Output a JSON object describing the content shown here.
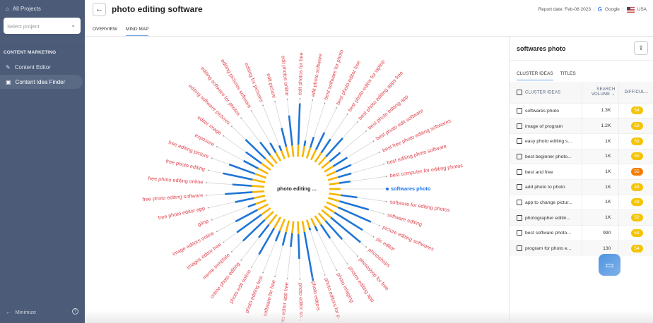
{
  "sidebar": {
    "all_projects": "All Projects",
    "select_placeholder": "Select project",
    "section": "CONTENT MARKETING",
    "items": [
      {
        "label": "Content Editor"
      },
      {
        "label": "Content Idea Finder"
      }
    ],
    "minimize": "Minimize"
  },
  "header": {
    "title": "photo editing software",
    "report_date": "Report date: Feb-08 2023",
    "engine": "Google",
    "country": "USA",
    "tabs": [
      "OVERVIEW",
      "MIND MAP"
    ]
  },
  "mindmap": {
    "center": "photo editing ...",
    "selected": "softwares photo",
    "colors": {
      "label": "#e0454f",
      "selected": "#1a73e8",
      "bar_blue": "#1f75d6",
      "bar_yellow": "#f7b500"
    },
    "nodes": [
      {
        "label": "softwares photo",
        "v": 0.0,
        "y": 0.45
      },
      {
        "label": "software for editing photos",
        "v": 0.3,
        "y": 0.5
      },
      {
        "label": "software editing",
        "v": 0.55,
        "y": 0.5
      },
      {
        "label": "picture editing softwares",
        "v": 0.65,
        "y": 0.55
      },
      {
        "label": "pic editor",
        "v": 0.6,
        "y": 0.5
      },
      {
        "label": "photoshops",
        "v": 0.7,
        "y": 0.5
      },
      {
        "label": "photoshop for free",
        "v": 0.45,
        "y": 0.4
      },
      {
        "label": "photos editing app",
        "v": 0.3,
        "y": 0.4
      },
      {
        "label": "photo imaging",
        "v": 0.1,
        "y": 0.3
      },
      {
        "label": "photo editors for p...",
        "v": 0.05,
        "y": 0.25
      },
      {
        "label": "photo editors",
        "v": 0.9,
        "y": 0.45
      },
      {
        "label": "photo editor so...",
        "v": 0.45,
        "y": 0.55
      },
      {
        "label": "photo editor app free",
        "v": 0.25,
        "y": 0.5
      },
      {
        "label": "software for free",
        "v": 0.25,
        "y": 0.5
      },
      {
        "label": "photo editing free",
        "v": 0.2,
        "y": 0.55
      },
      {
        "label": "photo edit online",
        "v": 0.55,
        "y": 0.55
      },
      {
        "label": "online photo editing",
        "v": 0.3,
        "y": 0.55
      },
      {
        "label": "meme template",
        "v": 0.55,
        "y": 0.5
      },
      {
        "label": "images editor free",
        "v": 0.55,
        "y": 0.45
      },
      {
        "label": "image editors online",
        "v": 0.45,
        "y": 0.5
      },
      {
        "label": "gimp",
        "v": 0.15,
        "y": 0.45
      },
      {
        "label": "free photo editor app",
        "v": 0.35,
        "y": 0.45
      },
      {
        "label": "free photo editing software",
        "v": 0.5,
        "y": 0.5
      },
      {
        "label": "free photo editing online",
        "v": 0.35,
        "y": 0.55
      },
      {
        "label": "free photo editing",
        "v": 0.55,
        "y": 0.55
      },
      {
        "label": "free editing picture",
        "v": 0.5,
        "y": 0.5
      },
      {
        "label": "exposure",
        "v": 0.3,
        "y": 0.45
      },
      {
        "label": "editor image",
        "v": 0.35,
        "y": 0.45
      },
      {
        "label": "editing software pictures",
        "v": 0.5,
        "y": 0.45
      },
      {
        "label": "editing software for photos",
        "v": 0.3,
        "y": 0.4
      },
      {
        "label": "editing pictures software",
        "v": 0.2,
        "y": 0.35
      },
      {
        "label": "editing for pictures",
        "v": 0.1,
        "y": 0.3
      },
      {
        "label": "edit picture",
        "v": 0.35,
        "y": 0.45
      },
      {
        "label": "edit photos online",
        "v": 0.55,
        "y": 0.45
      },
      {
        "label": "edit photos for free",
        "v": 0.75,
        "y": 0.5
      },
      {
        "label": "edit photo software",
        "v": 0.1,
        "y": 0.45
      },
      {
        "label": "best software for photo",
        "v": 0.2,
        "y": 0.45
      },
      {
        "label": "best photo editor free",
        "v": 0.35,
        "y": 0.45
      },
      {
        "label": "best photo editor for laptop",
        "v": 0.3,
        "y": 0.45
      },
      {
        "label": "best photo editing apps free",
        "v": 0.45,
        "y": 0.45
      },
      {
        "label": "best photo editing app",
        "v": 0.25,
        "y": 0.4
      },
      {
        "label": "best photo edit software",
        "v": 0.3,
        "y": 0.4
      },
      {
        "label": "best free photo editing softwares",
        "v": 0.3,
        "y": 0.4
      },
      {
        "label": "best editing photo software",
        "v": 0.25,
        "y": 0.4
      },
      {
        "label": "best computer for editing photos",
        "v": 0.2,
        "y": 0.4
      }
    ]
  },
  "panel": {
    "title": "softwares photo",
    "tabs": [
      "CLUSTER IDEAS",
      "TITLES"
    ],
    "columns": {
      "ideas": "CLUSTER IDEAS",
      "volume1": "SEARCH",
      "volume2": "VOLUME",
      "difficulty": "DIFFICUL..."
    },
    "rows": [
      {
        "idea": "softwares photo",
        "volume": "1.3K",
        "difficulty": "54",
        "color": "#f5c400"
      },
      {
        "idea": "image of program",
        "volume": "1.2K",
        "difficulty": "53",
        "color": "#f5c400"
      },
      {
        "idea": "easy photo editing s...",
        "volume": "1K",
        "difficulty": "53",
        "color": "#f5c400"
      },
      {
        "idea": "best beginner photo...",
        "volume": "1K",
        "difficulty": "50",
        "color": "#f5c400"
      },
      {
        "idea": "best and free",
        "volume": "1K",
        "difficulty": "55",
        "color": "#f57c00"
      },
      {
        "idea": "add photo to photo",
        "volume": "1K",
        "difficulty": "48",
        "color": "#f5c400"
      },
      {
        "idea": "app to change pictur...",
        "volume": "1K",
        "difficulty": "49",
        "color": "#f5c400"
      },
      {
        "idea": "photographer editin...",
        "volume": "1K",
        "difficulty": "52",
        "color": "#f5c400"
      },
      {
        "idea": "best software photo...",
        "volume": "990",
        "difficulty": "53",
        "color": "#f5c400"
      },
      {
        "idea": "program for photo e...",
        "volume": "130",
        "difficulty": "54",
        "color": "#f5c400"
      }
    ]
  }
}
